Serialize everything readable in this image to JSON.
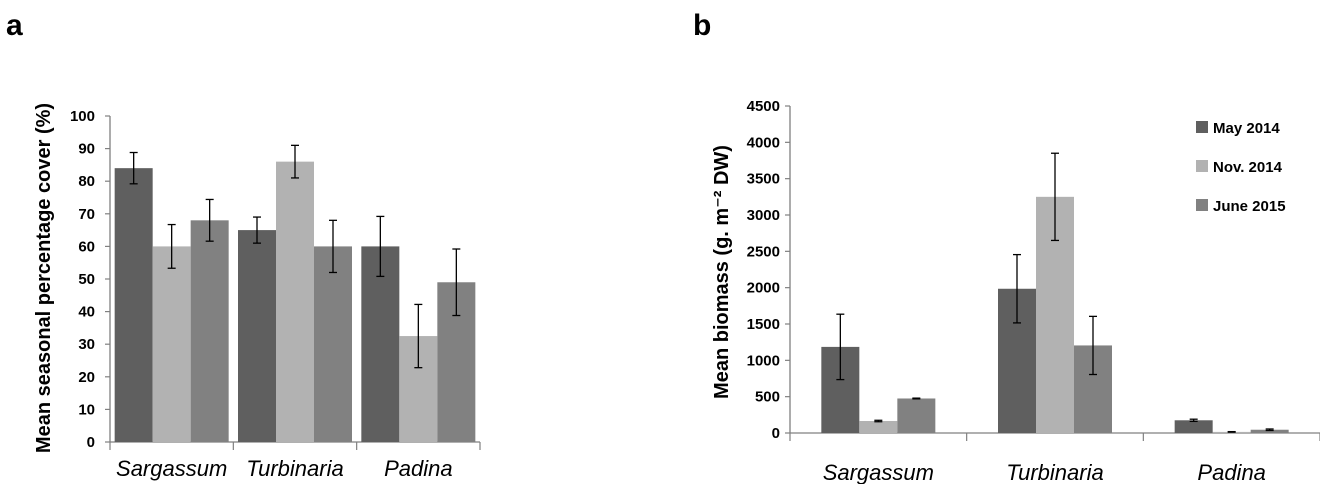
{
  "colors": {
    "series": [
      "#5f5f5f",
      "#b2b2b2",
      "#818181"
    ],
    "axis": "#808080",
    "error_bar": "#000000"
  },
  "chart_data": [
    {
      "panel": "a",
      "type": "bar",
      "categories": [
        "Sargassum",
        "Turbinaria",
        "Padina"
      ],
      "series": [
        {
          "name": "May 2014",
          "values": [
            84,
            65,
            60
          ],
          "errors": [
            4.8,
            4,
            9.2
          ]
        },
        {
          "name": "Nov. 2014",
          "values": [
            60,
            86,
            32.5
          ],
          "errors": [
            6.7,
            5,
            9.7
          ]
        },
        {
          "name": "June 2015",
          "values": [
            68,
            60,
            49
          ],
          "errors": [
            6.4,
            8,
            10.2
          ]
        }
      ],
      "ylabel": "Mean seasonal percentage cover (%)",
      "xlabel": "",
      "ylim": [
        0,
        100
      ],
      "yticks": [
        0,
        10,
        20,
        30,
        40,
        50,
        60,
        70,
        80,
        90,
        100
      ],
      "legend": "none",
      "grid": false
    },
    {
      "panel": "b",
      "type": "bar",
      "categories": [
        "Sargassum",
        "Turbinaria",
        "Padina"
      ],
      "series": [
        {
          "name": "May 2014",
          "values": [
            1185,
            1985,
            175
          ],
          "errors": [
            450,
            470,
            15
          ]
        },
        {
          "name": "Nov. 2014",
          "values": [
            165,
            3250,
            15
          ],
          "errors": [
            10,
            600,
            4
          ]
        },
        {
          "name": "June 2015",
          "values": [
            475,
            1205,
            45
          ],
          "errors": [
            5,
            400,
            10
          ]
        }
      ],
      "ylabel": "Mean biomass (g. m⁻² DW)",
      "xlabel": "",
      "ylim": [
        0,
        4500
      ],
      "yticks": [
        0,
        500,
        1000,
        1500,
        2000,
        2500,
        3000,
        3500,
        4000,
        4500
      ],
      "yticklabels": [
        "0",
        "500",
        "1000",
        "1500",
        "2000",
        "2500",
        "3000",
        "3500",
        "4000",
        "4500"
      ],
      "legend": "top-right",
      "grid": false
    }
  ]
}
